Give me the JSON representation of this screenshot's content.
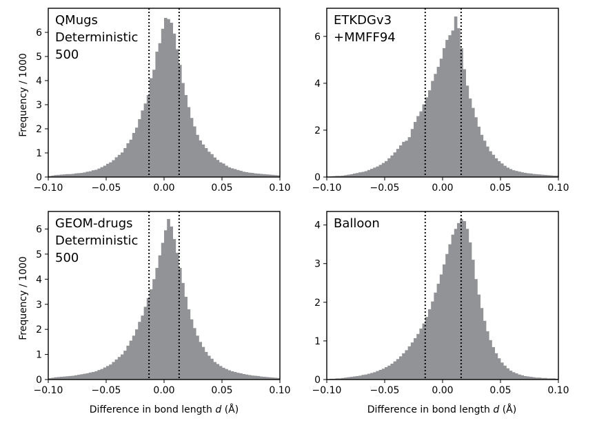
{
  "figure": {
    "ylabel": "Frequency / 1000",
    "xlabel_text": "Difference in bond length ",
    "xlabel_var": "d",
    "xlabel_unit": " (Å)"
  },
  "chart_data": [
    {
      "type": "bar",
      "panel_label": [
        "QMugs",
        "Deterministic",
        "500"
      ],
      "xlim": [
        -0.1,
        0.1
      ],
      "ylim": [
        0,
        7.0
      ],
      "xticks": [
        -0.1,
        -0.05,
        0.0,
        0.05,
        0.1
      ],
      "xtick_labels": [
        "−0.10",
        "−0.05",
        "0.00",
        "0.05",
        "0.10"
      ],
      "yticks": [
        0,
        1,
        2,
        3,
        4,
        5,
        6
      ],
      "ytick_labels": [
        "0",
        "1",
        "2",
        "3",
        "4",
        "5",
        "6"
      ],
      "vlines": [
        -0.013,
        0.013
      ],
      "bar_color": "#929396",
      "bins": {
        "start": -0.1,
        "width": 0.0025
      },
      "values": [
        0.04,
        0.06,
        0.08,
        0.09,
        0.1,
        0.11,
        0.12,
        0.12,
        0.13,
        0.15,
        0.16,
        0.17,
        0.19,
        0.22,
        0.24,
        0.28,
        0.3,
        0.35,
        0.41,
        0.47,
        0.55,
        0.61,
        0.7,
        0.82,
        0.92,
        1.02,
        1.2,
        1.4,
        1.55,
        1.83,
        2.05,
        2.4,
        2.76,
        3.05,
        3.4,
        4.1,
        4.45,
        5.2,
        5.55,
        6.15,
        6.6,
        6.55,
        6.4,
        5.95,
        5.3,
        4.65,
        3.9,
        3.4,
        2.9,
        2.45,
        2.1,
        1.75,
        1.52,
        1.35,
        1.2,
        1.05,
        0.95,
        0.81,
        0.71,
        0.61,
        0.56,
        0.47,
        0.4,
        0.36,
        0.33,
        0.29,
        0.26,
        0.22,
        0.2,
        0.18,
        0.17,
        0.15,
        0.14,
        0.13,
        0.12,
        0.11,
        0.1,
        0.09,
        0.08,
        0.07
      ]
    },
    {
      "type": "bar",
      "panel_label": [
        "ETKDGv3",
        "+MMFF94"
      ],
      "xlim": [
        -0.1,
        0.1
      ],
      "ylim": [
        0,
        7.2
      ],
      "xticks": [
        -0.1,
        -0.05,
        0.0,
        0.05,
        0.1
      ],
      "xtick_labels": [
        "−0.10",
        "−0.05",
        "0.00",
        "0.05",
        "0.10"
      ],
      "yticks": [
        0,
        2,
        4,
        6
      ],
      "ytick_labels": [
        "0",
        "2",
        "4",
        "6"
      ],
      "vlines": [
        -0.015,
        0.016
      ],
      "bar_color": "#929396",
      "bins": {
        "start": -0.1,
        "width": 0.0025
      },
      "values": [
        0.02,
        0.03,
        0.04,
        0.05,
        0.05,
        0.06,
        0.08,
        0.1,
        0.12,
        0.15,
        0.17,
        0.2,
        0.22,
        0.25,
        0.3,
        0.35,
        0.4,
        0.45,
        0.52,
        0.6,
        0.68,
        0.8,
        0.92,
        1.05,
        1.2,
        1.35,
        1.5,
        1.55,
        1.7,
        2.05,
        2.35,
        2.6,
        2.8,
        3.1,
        3.4,
        3.7,
        4.1,
        4.4,
        4.7,
        5.05,
        5.5,
        5.85,
        6.05,
        6.25,
        6.85,
        6.35,
        5.5,
        4.6,
        3.9,
        3.35,
        2.95,
        2.55,
        2.15,
        1.8,
        1.55,
        1.3,
        1.1,
        0.95,
        0.8,
        0.68,
        0.58,
        0.48,
        0.4,
        0.34,
        0.29,
        0.26,
        0.23,
        0.2,
        0.18,
        0.16,
        0.15,
        0.13,
        0.12,
        0.11,
        0.1,
        0.09,
        0.08,
        0.07,
        0.06,
        0.06
      ]
    },
    {
      "type": "bar",
      "panel_label": [
        "GEOM-drugs",
        "Deterministic",
        "500"
      ],
      "xlim": [
        -0.1,
        0.1
      ],
      "ylim": [
        0,
        6.7
      ],
      "xticks": [
        -0.1,
        -0.05,
        0.0,
        0.05,
        0.1
      ],
      "xtick_labels": [
        "−0.10",
        "−0.05",
        "0.00",
        "0.05",
        "0.10"
      ],
      "yticks": [
        0,
        1,
        2,
        3,
        4,
        5,
        6
      ],
      "ytick_labels": [
        "0",
        "1",
        "2",
        "3",
        "4",
        "5",
        "6"
      ],
      "vlines": [
        -0.013,
        0.013
      ],
      "bar_color": "#929396",
      "bins": {
        "start": -0.1,
        "width": 0.0025
      },
      "values": [
        0.05,
        0.07,
        0.09,
        0.1,
        0.11,
        0.12,
        0.13,
        0.14,
        0.15,
        0.17,
        0.19,
        0.21,
        0.23,
        0.25,
        0.28,
        0.3,
        0.33,
        0.38,
        0.42,
        0.48,
        0.54,
        0.6,
        0.7,
        0.8,
        0.9,
        1.0,
        1.15,
        1.35,
        1.55,
        1.75,
        2.0,
        2.3,
        2.55,
        2.9,
        3.25,
        3.6,
        4.0,
        4.45,
        4.95,
        5.45,
        5.95,
        6.4,
        6.1,
        5.6,
        5.05,
        4.45,
        3.85,
        3.3,
        2.8,
        2.4,
        2.05,
        1.75,
        1.5,
        1.3,
        1.1,
        0.95,
        0.83,
        0.7,
        0.62,
        0.54,
        0.47,
        0.42,
        0.37,
        0.33,
        0.3,
        0.27,
        0.25,
        0.22,
        0.2,
        0.18,
        0.16,
        0.15,
        0.14,
        0.12,
        0.11,
        0.1,
        0.09,
        0.08,
        0.07,
        0.06
      ]
    },
    {
      "type": "bar",
      "panel_label": [
        "Balloon"
      ],
      "xlim": [
        -0.1,
        0.1
      ],
      "ylim": [
        0,
        4.35
      ],
      "xticks": [
        -0.1,
        -0.05,
        0.0,
        0.05,
        0.1
      ],
      "xtick_labels": [
        "−0.10",
        "−0.05",
        "0.00",
        "0.05",
        "0.10"
      ],
      "yticks": [
        0,
        1,
        2,
        3,
        4
      ],
      "ytick_labels": [
        "0",
        "1",
        "2",
        "3",
        "4"
      ],
      "vlines": [
        -0.015,
        0.016
      ],
      "bar_color": "#929396",
      "bins": {
        "start": -0.1,
        "width": 0.0025
      },
      "values": [
        0.01,
        0.02,
        0.02,
        0.03,
        0.03,
        0.04,
        0.05,
        0.06,
        0.07,
        0.08,
        0.09,
        0.1,
        0.12,
        0.13,
        0.15,
        0.17,
        0.19,
        0.22,
        0.25,
        0.28,
        0.32,
        0.36,
        0.41,
        0.47,
        0.53,
        0.6,
        0.68,
        0.76,
        0.86,
        0.96,
        1.07,
        1.18,
        1.32,
        1.45,
        1.62,
        1.82,
        2.02,
        2.25,
        2.48,
        2.72,
        2.98,
        3.25,
        3.5,
        3.75,
        3.9,
        4.05,
        4.15,
        4.1,
        3.9,
        3.55,
        3.1,
        2.6,
        2.2,
        1.85,
        1.52,
        1.25,
        1.02,
        0.84,
        0.68,
        0.55,
        0.44,
        0.36,
        0.29,
        0.23,
        0.19,
        0.16,
        0.13,
        0.11,
        0.09,
        0.08,
        0.07,
        0.06,
        0.05,
        0.05,
        0.04,
        0.04,
        0.03,
        0.03,
        0.03,
        0.02
      ]
    }
  ]
}
